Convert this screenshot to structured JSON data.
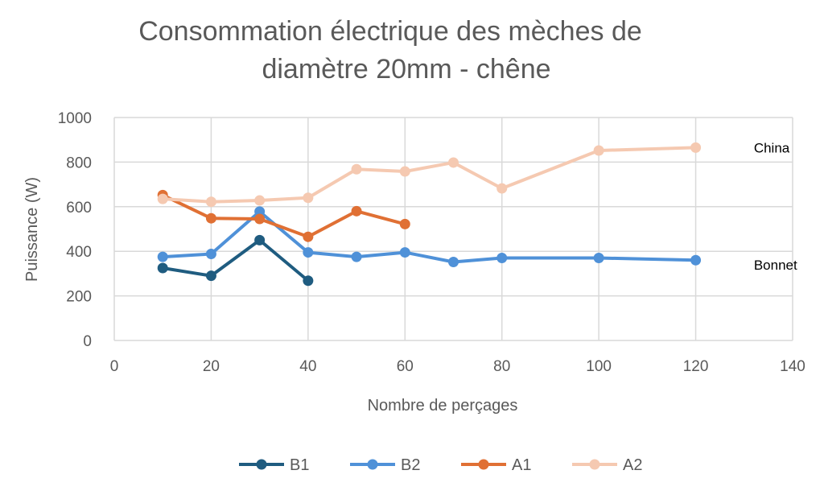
{
  "chart_data": {
    "type": "line",
    "title_lines": [
      "Consommation électrique des mèches de",
      "diamètre 20mm   - chêne"
    ],
    "xlabel": "Nombre de perçages",
    "ylabel": "Puissance (W)",
    "xlim": [
      0,
      140
    ],
    "ylim": [
      0,
      1000
    ],
    "x_ticks": [
      0,
      20,
      40,
      60,
      80,
      100,
      120,
      140
    ],
    "y_ticks": [
      0,
      200,
      400,
      600,
      800,
      1000
    ],
    "grid": true,
    "legend_position": "bottom",
    "series": [
      {
        "name": "B1",
        "color": "#1f5c80",
        "x": [
          10,
          20,
          30,
          40
        ],
        "y": [
          325,
          290,
          450,
          268
        ]
      },
      {
        "name": "B2",
        "color": "#4f91d8",
        "x": [
          10,
          20,
          30,
          40,
          50,
          60,
          70,
          80,
          100,
          120
        ],
        "y": [
          375,
          388,
          578,
          395,
          375,
          395,
          352,
          370,
          370,
          360
        ]
      },
      {
        "name": "A1",
        "color": "#e07034",
        "x": [
          10,
          20,
          30,
          40,
          50,
          60
        ],
        "y": [
          652,
          548,
          545,
          465,
          580,
          522
        ]
      },
      {
        "name": "A2",
        "color": "#f5c9b1",
        "x": [
          10,
          20,
          30,
          40,
          50,
          60,
          70,
          80,
          100,
          120
        ],
        "y": [
          635,
          622,
          628,
          640,
          768,
          758,
          798,
          682,
          852,
          865
        ]
      }
    ],
    "annotations": [
      {
        "text": "China",
        "x": 132,
        "y": 865
      },
      {
        "text": "Bonnet",
        "x": 132,
        "y": 340
      }
    ]
  }
}
